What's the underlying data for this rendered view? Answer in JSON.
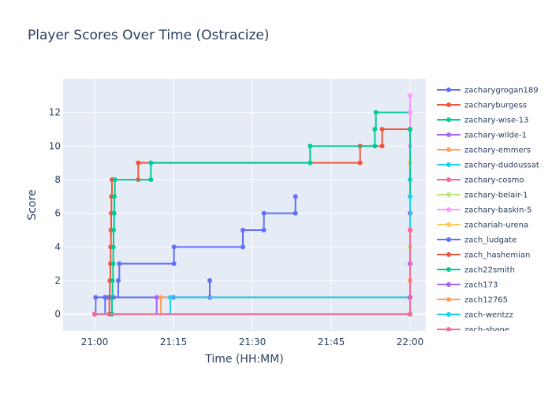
{
  "chart_data": {
    "type": "line",
    "line_shape": "step",
    "title": "Player Scores Over Time (Ostracize)",
    "xlabel": "Time (HH:MM)",
    "ylabel": "Score",
    "x_unit": "minutes after 21:00",
    "xlim": [
      -6,
      63
    ],
    "ylim": [
      -1,
      14
    ],
    "x_ticks": [
      {
        "v": 0,
        "label": "21:00"
      },
      {
        "v": 15,
        "label": "21:15"
      },
      {
        "v": 30,
        "label": "21:30"
      },
      {
        "v": 45,
        "label": "21:45"
      },
      {
        "v": 60,
        "label": "22:00"
      }
    ],
    "y_ticks": [
      0,
      2,
      4,
      6,
      8,
      10,
      12
    ],
    "grid": true,
    "legend_position": "right",
    "plot_bg": "#e5ecf6",
    "series": [
      {
        "name": "zacharygrogan189",
        "color": "#636efa",
        "points": [
          [
            0,
            0
          ],
          [
            0.2,
            1
          ],
          [
            2,
            1
          ],
          [
            2.6,
            1
          ],
          [
            3.2,
            1
          ],
          [
            3.6,
            1
          ],
          [
            15,
            1
          ],
          [
            21.9,
            1
          ],
          [
            21.9,
            2
          ]
        ]
      },
      {
        "name": "zacharyburgess",
        "color": "#EF553B",
        "points": [
          [
            0,
            0
          ],
          [
            2.8,
            0
          ],
          [
            2.8,
            1
          ],
          [
            2.9,
            2
          ],
          [
            3.0,
            3
          ],
          [
            3.05,
            4
          ],
          [
            3.1,
            5
          ],
          [
            3.15,
            6
          ],
          [
            3.2,
            7
          ],
          [
            3.3,
            8
          ],
          [
            8.3,
            8
          ],
          [
            8.3,
            9
          ],
          [
            50.5,
            9
          ],
          [
            50.5,
            10
          ],
          [
            54.7,
            10
          ],
          [
            54.7,
            11
          ],
          [
            60,
            11
          ]
        ]
      },
      {
        "name": "zachary-wise-13",
        "color": "#00cc96",
        "points": [
          [
            0,
            0
          ],
          [
            3.3,
            0
          ],
          [
            3.3,
            1
          ],
          [
            3.4,
            2
          ],
          [
            3.5,
            3
          ],
          [
            3.55,
            4
          ],
          [
            3.6,
            5
          ],
          [
            3.7,
            6
          ],
          [
            3.75,
            7
          ],
          [
            3.85,
            8
          ],
          [
            10.7,
            8
          ],
          [
            10.7,
            9
          ],
          [
            41,
            9
          ],
          [
            41,
            10
          ],
          [
            53.3,
            10
          ],
          [
            53.3,
            11
          ],
          [
            53.5,
            12
          ],
          [
            60,
            12
          ]
        ]
      },
      {
        "name": "zachary-wilde-1",
        "color": "#ab63fa",
        "points": [
          [
            0,
            0
          ],
          [
            11.8,
            1
          ],
          [
            60,
            1
          ]
        ]
      },
      {
        "name": "zachary-emmers",
        "color": "#FFA15A",
        "points": [
          [
            0,
            0
          ],
          [
            12.6,
            1
          ],
          [
            60,
            1
          ]
        ]
      },
      {
        "name": "zachary-dudoussat",
        "color": "#19d3f3",
        "points": [
          [
            0,
            0
          ],
          [
            14.4,
            1
          ],
          [
            60,
            1
          ],
          [
            60,
            7
          ],
          [
            60,
            8
          ]
        ]
      },
      {
        "name": "zachary-cosmo",
        "color": "#FF6692",
        "points": [
          [
            0,
            0
          ],
          [
            60,
            0
          ],
          [
            60,
            1
          ],
          [
            60,
            5
          ],
          [
            60,
            6
          ]
        ]
      },
      {
        "name": "zachary-belair-1",
        "color": "#B6E880",
        "points": [
          [
            0,
            0
          ],
          [
            60,
            0
          ],
          [
            60,
            2
          ],
          [
            60,
            4
          ]
        ]
      },
      {
        "name": "zachary-baskin-5",
        "color": "#FF97FF",
        "points": [
          [
            0,
            0
          ],
          [
            60,
            0
          ],
          [
            60,
            1
          ],
          [
            60,
            3
          ],
          [
            60,
            6
          ],
          [
            60,
            10
          ],
          [
            60,
            12
          ],
          [
            60,
            13
          ]
        ]
      },
      {
        "name": "zachariah-urena",
        "color": "#FECB52",
        "points": [
          [
            0,
            0
          ],
          [
            60,
            0
          ],
          [
            60,
            9
          ]
        ]
      },
      {
        "name": "zach_ludgate",
        "color": "#636efa",
        "points": [
          [
            0,
            0
          ],
          [
            2,
            1
          ],
          [
            4.5,
            2
          ],
          [
            4.7,
            3
          ],
          [
            15.1,
            3
          ],
          [
            15.1,
            4
          ],
          [
            28.2,
            4
          ],
          [
            28.2,
            5
          ],
          [
            32.2,
            5
          ],
          [
            32.2,
            6
          ],
          [
            38.2,
            6
          ],
          [
            38.2,
            7
          ]
        ]
      },
      {
        "name": "zach_hashemian",
        "color": "#EF553B",
        "points": [
          [
            0,
            0
          ],
          [
            60,
            0
          ],
          [
            60,
            1
          ],
          [
            60,
            2
          ],
          [
            60,
            5
          ],
          [
            60,
            11
          ]
        ]
      },
      {
        "name": "zach22smith",
        "color": "#00cc96",
        "points": [
          [
            0,
            0
          ],
          [
            60,
            0
          ],
          [
            60,
            11
          ]
        ]
      },
      {
        "name": "zach173",
        "color": "#ab63fa",
        "points": [
          [
            0,
            0
          ],
          [
            60,
            0
          ],
          [
            60,
            1
          ],
          [
            60,
            3
          ],
          [
            60,
            6
          ]
        ]
      },
      {
        "name": "zach12765",
        "color": "#FFA15A",
        "points": [
          [
            0,
            0
          ],
          [
            60,
            0
          ],
          [
            60,
            2
          ]
        ]
      },
      {
        "name": "zach-wentzz",
        "color": "#19d3f3",
        "points": [
          [
            0,
            0
          ],
          [
            60,
            0
          ],
          [
            60,
            7
          ]
        ]
      },
      {
        "name": "zach-shane",
        "color": "#FF6692",
        "points": [
          [
            0,
            0
          ],
          [
            60,
            0
          ],
          [
            60,
            5
          ]
        ]
      }
    ]
  }
}
